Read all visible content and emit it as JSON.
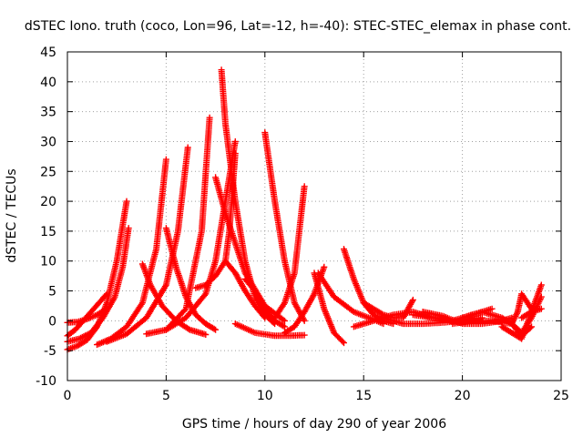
{
  "chart_data": {
    "type": "scatter",
    "title": "dSTEC Iono. truth (coco, Lon=96, Lat=-12, h=-40): STEC-STEC_elemax in phase cont.",
    "xlabel": "GPS time / hours of day 290 of year 2006",
    "ylabel": "dSTEC  / TECUs",
    "xlim": [
      0,
      25
    ],
    "ylim": [
      -10,
      45
    ],
    "xticks": [
      0,
      5,
      10,
      15,
      20,
      25
    ],
    "yticks": [
      -10,
      -5,
      0,
      5,
      10,
      15,
      20,
      25,
      30,
      35,
      40,
      45
    ],
    "grid": true,
    "grid_style": "dotted",
    "marker": "+",
    "series_color": "#ff0000",
    "series": [
      {
        "x": [
          0.0,
          0.5,
          1.0,
          1.5,
          2.0,
          2.5,
          3.0
        ],
        "y": [
          -4.8,
          -4.2,
          -3.2,
          -1.0,
          3.0,
          10.0,
          20.0
        ]
      },
      {
        "x": [
          0.0,
          0.6,
          1.2,
          1.8,
          2.4,
          2.8,
          3.1
        ],
        "y": [
          -3.5,
          -3.0,
          -2.0,
          0.5,
          4.0,
          9.0,
          15.5
        ]
      },
      {
        "x": [
          0.0,
          0.5,
          1.0,
          1.5,
          2.0
        ],
        "y": [
          -0.3,
          -0.2,
          0.3,
          1.0,
          2.0
        ]
      },
      {
        "x": [
          0.0,
          0.4,
          0.8,
          1.2,
          1.6,
          2.0
        ],
        "y": [
          -2.5,
          -1.5,
          0.0,
          1.5,
          3.0,
          4.5
        ]
      },
      {
        "x": [
          1.5,
          2.2,
          3.0,
          3.8,
          4.5,
          5.0
        ],
        "y": [
          -4.0,
          -3.0,
          -1.0,
          3.0,
          12.0,
          27.0
        ]
      },
      {
        "x": [
          2.0,
          3.0,
          4.0,
          5.0,
          5.6,
          6.1
        ],
        "y": [
          -3.5,
          -2.2,
          0.5,
          6.0,
          15.0,
          29.0
        ]
      },
      {
        "x": [
          3.8,
          4.2,
          4.8,
          5.5,
          6.2,
          7.0
        ],
        "y": [
          9.5,
          6.0,
          2.5,
          0.0,
          -1.5,
          -2.3
        ]
      },
      {
        "x": [
          5.0,
          5.5,
          6.0,
          6.5,
          7.0,
          7.5
        ],
        "y": [
          15.5,
          9.0,
          4.0,
          1.0,
          -0.5,
          -1.5
        ]
      },
      {
        "x": [
          4.0,
          5.0,
          6.0,
          6.8,
          7.2
        ],
        "y": [
          -2.2,
          -1.5,
          2.0,
          15.0,
          34.0
        ]
      },
      {
        "x": [
          5.0,
          6.0,
          7.0,
          7.5,
          8.0,
          8.5
        ],
        "y": [
          -1.5,
          0.5,
          4.5,
          10.0,
          20.0,
          30.0
        ]
      },
      {
        "x": [
          6.5,
          7.0,
          7.5,
          8.0,
          8.2,
          8.5
        ],
        "y": [
          5.5,
          6.0,
          7.5,
          10.0,
          15.0,
          28.0
        ]
      },
      {
        "x": [
          7.8,
          8.0,
          8.5,
          9.0,
          9.5,
          10.0,
          10.5
        ],
        "y": [
          42.0,
          33.0,
          20.0,
          10.0,
          4.0,
          1.0,
          -0.5
        ]
      },
      {
        "x": [
          7.5,
          8.0,
          9.0,
          10.0,
          11.0
        ],
        "y": [
          24.0,
          18.0,
          8.0,
          2.5,
          0.0
        ]
      },
      {
        "x": [
          8.0,
          8.5,
          9.0,
          9.5,
          10.0
        ],
        "y": [
          10.0,
          8.0,
          5.0,
          2.5,
          0.5
        ]
      },
      {
        "x": [
          9.0,
          9.5,
          10.0,
          10.5,
          11.0
        ],
        "y": [
          7.0,
          5.0,
          2.0,
          0.0,
          -1.0
        ]
      },
      {
        "x": [
          10.0,
          10.5,
          11.0,
          11.5,
          12.0
        ],
        "y": [
          31.5,
          20.0,
          10.0,
          3.0,
          0.0
        ]
      },
      {
        "x": [
          8.5,
          9.5,
          10.5,
          11.2,
          12.0
        ],
        "y": [
          -0.5,
          -2.0,
          -2.5,
          -2.5,
          -2.4
        ]
      },
      {
        "x": [
          10.5,
          11.0,
          11.5,
          12.0
        ],
        "y": [
          0.5,
          3.0,
          8.0,
          22.5
        ]
      },
      {
        "x": [
          11.0,
          11.5,
          12.0,
          12.5,
          13.0
        ],
        "y": [
          -2.0,
          -1.0,
          1.5,
          4.5,
          9.0
        ]
      },
      {
        "x": [
          12.5,
          13.0,
          13.5,
          14.0
        ],
        "y": [
          8.0,
          2.0,
          -2.0,
          -3.7
        ]
      },
      {
        "x": [
          14.0,
          14.5,
          15.0,
          15.5,
          16.0,
          16.5
        ],
        "y": [
          12.0,
          7.0,
          3.0,
          1.0,
          0.0,
          -0.5
        ]
      },
      {
        "x": [
          12.7,
          13.5,
          14.5,
          15.5,
          16.0
        ],
        "y": [
          8.0,
          4.0,
          1.5,
          0.2,
          -0.5
        ]
      },
      {
        "x": [
          15.0,
          15.5,
          16.0,
          16.5,
          17.0,
          17.5
        ],
        "y": [
          3.0,
          2.0,
          1.0,
          0.5,
          0.5,
          3.5
        ]
      },
      {
        "x": [
          14.5,
          15.5,
          16.5,
          17.5,
          18.5,
          19.5
        ],
        "y": [
          -1.0,
          0.0,
          1.0,
          1.5,
          0.5,
          0.0
        ]
      },
      {
        "x": [
          16.0,
          17.0,
          18.0,
          19.0,
          20.0,
          21.0
        ],
        "y": [
          0.5,
          -0.5,
          -0.5,
          -0.3,
          0.0,
          0.5
        ]
      },
      {
        "x": [
          17.5,
          18.5,
          19.5,
          20.5,
          21.5
        ],
        "y": [
          1.0,
          0.5,
          0.0,
          1.0,
          2.0
        ]
      },
      {
        "x": [
          18.0,
          19.0,
          20.0,
          21.0,
          22.0,
          22.5
        ],
        "y": [
          1.5,
          0.8,
          -0.5,
          -0.5,
          0.0,
          0.5
        ]
      },
      {
        "x": [
          19.5,
          20.5,
          21.5,
          22.5,
          23.0
        ],
        "y": [
          -0.5,
          0.0,
          0.0,
          -0.5,
          -2.0
        ]
      },
      {
        "x": [
          20.0,
          21.0,
          22.0,
          22.5,
          23.0,
          23.5
        ],
        "y": [
          0.5,
          1.5,
          0.5,
          -0.5,
          -2.5,
          -1.0
        ]
      },
      {
        "x": [
          22.0,
          22.5,
          23.0,
          23.5,
          24.0
        ],
        "y": [
          -1.0,
          -2.0,
          -3.0,
          1.5,
          6.0
        ]
      },
      {
        "x": [
          22.5,
          22.8,
          23.0,
          23.5
        ],
        "y": [
          -0.5,
          1.5,
          4.5,
          2.0
        ]
      },
      {
        "x": [
          23.0,
          23.5,
          24.0
        ],
        "y": [
          -2.0,
          0.5,
          4.0
        ]
      },
      {
        "x": [
          23.0,
          23.5,
          24.0
        ],
        "y": [
          0.5,
          1.5,
          2.0
        ]
      }
    ]
  }
}
